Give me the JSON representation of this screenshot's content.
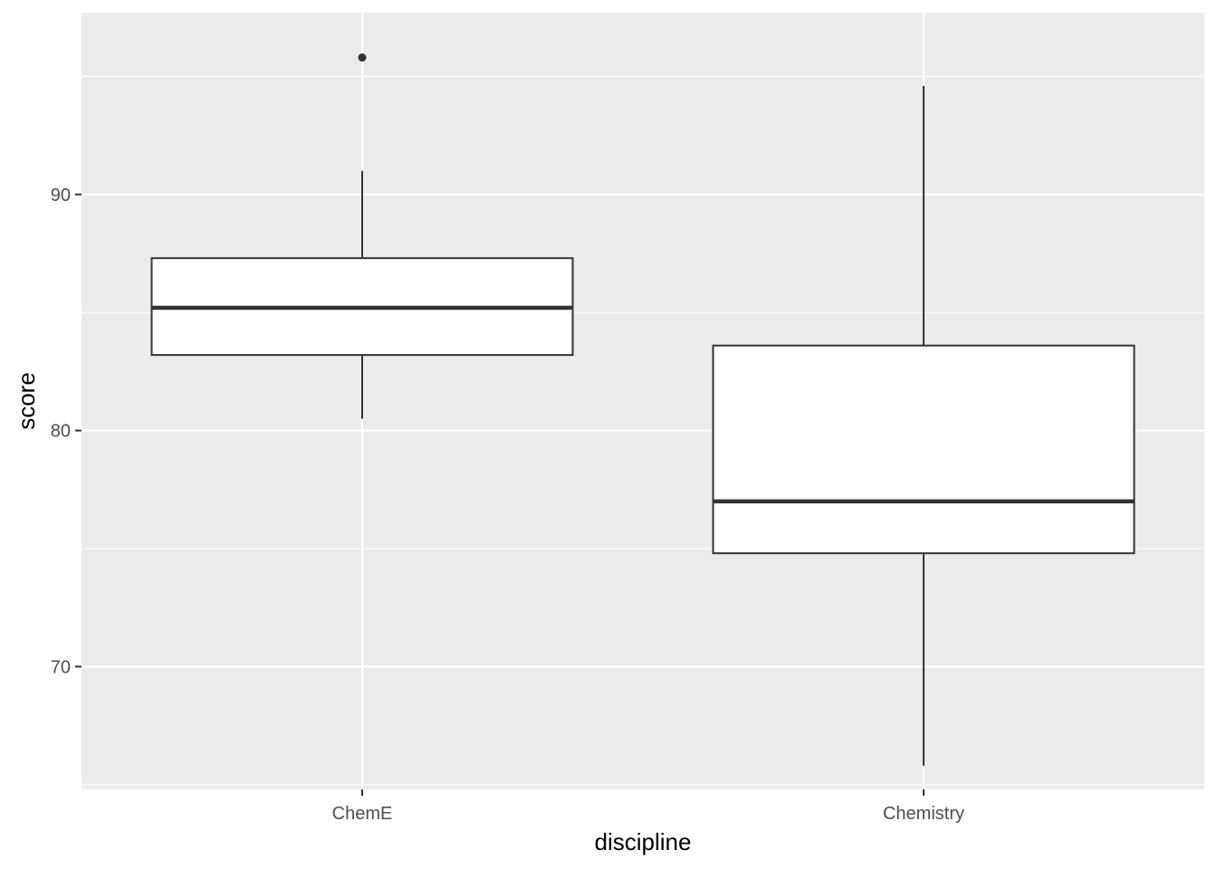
{
  "chart_data": {
    "type": "boxplot",
    "xlabel": "discipline",
    "ylabel": "score",
    "categories": [
      "ChemE",
      "Chemistry"
    ],
    "ylim": [
      64.8,
      97.7
    ],
    "y_ticks": [
      70,
      80,
      90
    ],
    "y_tick_labels": [
      "70",
      "80",
      "90"
    ],
    "grid": true,
    "boxes": [
      {
        "category": "ChemE",
        "whisker_low": 80.5,
        "q1": 83.2,
        "median": 85.2,
        "q3": 87.3,
        "whisker_high": 91.0,
        "outliers": [
          95.8
        ]
      },
      {
        "category": "Chemistry",
        "whisker_low": 65.8,
        "q1": 74.8,
        "median": 77.0,
        "q3": 83.6,
        "whisker_high": 94.6,
        "outliers": []
      }
    ],
    "colors": {
      "panel": "#ebebeb",
      "grid": "#ffffff",
      "box_fill": "#ffffff",
      "box_stroke": "#333333",
      "tick_text": "#4d4d4d"
    }
  }
}
